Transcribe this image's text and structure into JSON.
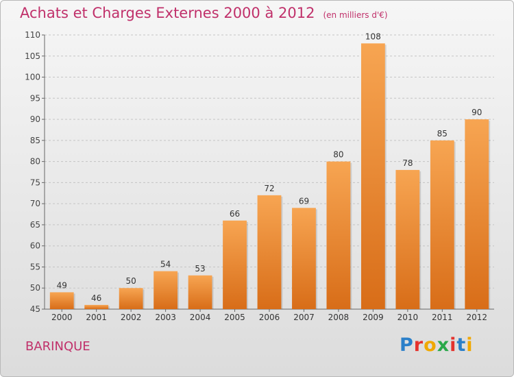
{
  "title": "Achats et Charges Externes 2000 à 2012",
  "unit_note": "(en milliers d'€)",
  "place": "BARINQUE",
  "logo": {
    "text": "Proxiti",
    "letter_colors": [
      "#2a7fc9",
      "#e5322d",
      "#f0a800",
      "#2aa84a",
      "#e5322d",
      "#2a7fc9",
      "#f0a800"
    ]
  },
  "colors": {
    "bar_top": "#f7a552",
    "bar_bottom": "#d86d18",
    "title": "#c0306a"
  },
  "chart_data": {
    "type": "bar",
    "title": "Achats et Charges Externes 2000 à 2012",
    "subtitle": "(en milliers d'€)",
    "xlabel": "",
    "ylabel": "",
    "categories": [
      "2000",
      "2001",
      "2002",
      "2003",
      "2004",
      "2005",
      "2006",
      "2007",
      "2008",
      "2009",
      "2010",
      "2011",
      "2012"
    ],
    "values": [
      49,
      46,
      50,
      54,
      53,
      66,
      72,
      69,
      80,
      108,
      78,
      85,
      90
    ],
    "ylim": [
      45,
      110
    ],
    "yticks": [
      45,
      50,
      55,
      60,
      65,
      70,
      75,
      80,
      85,
      90,
      95,
      100,
      105,
      110
    ],
    "grid": true
  }
}
